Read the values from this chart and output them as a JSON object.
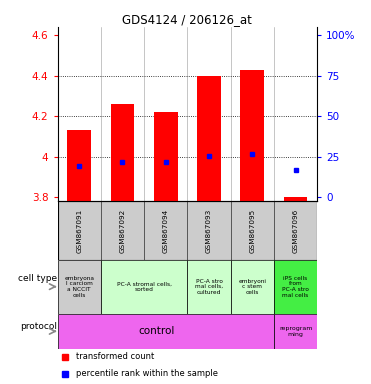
{
  "title": "GDS4124 / 206126_at",
  "samples": [
    "GSM867091",
    "GSM867092",
    "GSM867094",
    "GSM867093",
    "GSM867095",
    "GSM867096"
  ],
  "bar_tops": [
    4.13,
    4.26,
    4.22,
    4.4,
    4.43,
    3.8
  ],
  "bar_bottom": 3.78,
  "percentile_values": [
    3.955,
    3.975,
    3.975,
    4.005,
    4.015,
    3.935
  ],
  "ylim": [
    3.78,
    4.64
  ],
  "yticks_left": [
    3.8,
    4.0,
    4.2,
    4.4,
    4.6
  ],
  "yticks_right_labels": [
    "0",
    "25",
    "50",
    "75",
    "100%"
  ],
  "yticks_right_pos": [
    3.8,
    4.0,
    4.2,
    4.4,
    4.6
  ],
  "bar_color": "#FF0000",
  "dot_color": "#0000FF",
  "bg_color": "#ffffff",
  "cell_types": [
    {
      "span": [
        0,
        1
      ],
      "text": "embryona\nl carciom\na NCCIT\ncells",
      "color": "#cccccc"
    },
    {
      "span": [
        1,
        3
      ],
      "text": "PC-A stromal cells,\nsorted",
      "color": "#ccffcc"
    },
    {
      "span": [
        3,
        4
      ],
      "text": "PC-A stro\nmal cells,\ncultured",
      "color": "#ccffcc"
    },
    {
      "span": [
        4,
        5
      ],
      "text": "embryoni\nc stem\ncells",
      "color": "#ccffcc"
    },
    {
      "span": [
        5,
        6
      ],
      "text": "iPS cells\nfrom\nPC-A stro\nmal cells",
      "color": "#44ee44"
    }
  ],
  "protocol_ctrl_color": "#ee66ee",
  "protocol_reprog_color": "#ee66ee"
}
